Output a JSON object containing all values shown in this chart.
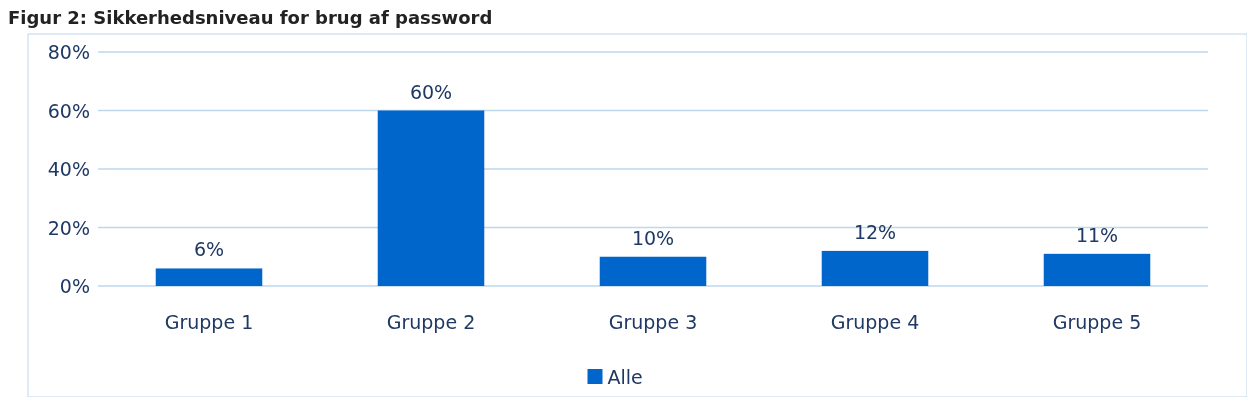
{
  "chart_data": {
    "type": "bar",
    "title": "Figur 2:  Sikkerhedsniveau for brug af password",
    "categories": [
      "Gruppe 1",
      "Gruppe 2",
      "Gruppe 3",
      "Gruppe 4",
      "Gruppe 5"
    ],
    "series": [
      {
        "name": "Alle",
        "color": "#0066cc",
        "values": [
          6,
          60,
          10,
          12,
          11
        ],
        "value_labels": [
          "6%",
          "60%",
          "10%",
          "12%",
          "11%"
        ]
      }
    ],
    "ylim": [
      0,
      80
    ],
    "yticks": [
      {
        "value": 0,
        "label": "0%"
      },
      {
        "value": 20,
        "label": "20%"
      },
      {
        "value": 40,
        "label": "40%"
      },
      {
        "value": 60,
        "label": "60%"
      },
      {
        "value": 80,
        "label": "80%"
      }
    ],
    "grid": "y",
    "legend": "bottom"
  }
}
